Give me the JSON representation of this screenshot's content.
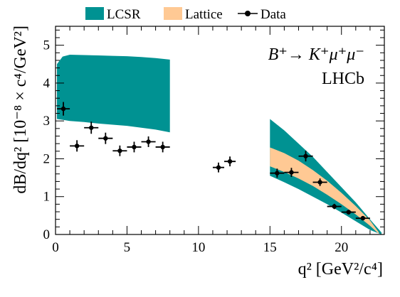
{
  "chart_data": {
    "type": "scatter",
    "title": "",
    "xlabel": "q² [GeV²/c⁴]",
    "ylabel": "dB/dq² [10⁻⁸ × c⁴/GeV²]",
    "xlim": [
      0,
      23
    ],
    "ylim": [
      0,
      5.5
    ],
    "xticks": [
      "0",
      "5",
      "10",
      "15",
      "20"
    ],
    "yticks": [
      "0",
      "1",
      "2",
      "3",
      "4",
      "5"
    ],
    "legend_placement": "top",
    "annotations": [
      "B⁺→ K⁺μ⁺μ⁻",
      "LHCb"
    ],
    "grid": false,
    "series": [
      {
        "name": "LCSR",
        "kind": "band",
        "color": "#009292",
        "segments": [
          {
            "x": [
              0.1,
              0.5,
              1,
              2,
              3,
              4,
              5,
              6,
              7,
              8
            ],
            "lower": [
              3.05,
              3.03,
              3.0,
              2.97,
              2.93,
              2.9,
              2.87,
              2.82,
              2.77,
              2.7
            ],
            "upper": [
              4.5,
              4.7,
              4.75,
              4.74,
              4.73,
              4.72,
              4.71,
              4.69,
              4.66,
              4.62
            ]
          },
          {
            "x": [
              15,
              16,
              17,
              18,
              19,
              20,
              21,
              22,
              22.8
            ],
            "lower": [
              1.55,
              1.38,
              1.2,
              1.0,
              0.8,
              0.58,
              0.35,
              0.12,
              0.0
            ],
            "upper": [
              3.05,
              2.75,
              2.4,
              2.05,
              1.65,
              1.25,
              0.85,
              0.4,
              0.05
            ]
          }
        ]
      },
      {
        "name": "Lattice",
        "kind": "band",
        "color": "#ffc994",
        "segments": [
          {
            "x": [
              15,
              16,
              17,
              18,
              19,
              20,
              21,
              22,
              22.6
            ],
            "lower": [
              1.8,
              1.65,
              1.48,
              1.28,
              1.05,
              0.8,
              0.53,
              0.23,
              0.02
            ],
            "upper": [
              2.3,
              2.15,
              1.95,
              1.7,
              1.42,
              1.1,
              0.75,
              0.37,
              0.06
            ]
          }
        ]
      },
      {
        "name": "Data",
        "kind": "points",
        "color": "#000000",
        "points": [
          {
            "x": 0.55,
            "xerr": 0.45,
            "y": 3.32,
            "yerr": 0.18
          },
          {
            "x": 1.5,
            "xerr": 0.5,
            "y": 2.34,
            "yerr": 0.15
          },
          {
            "x": 2.5,
            "xerr": 0.5,
            "y": 2.82,
            "yerr": 0.16
          },
          {
            "x": 3.5,
            "xerr": 0.5,
            "y": 2.54,
            "yerr": 0.15
          },
          {
            "x": 4.5,
            "xerr": 0.5,
            "y": 2.21,
            "yerr": 0.14
          },
          {
            "x": 5.5,
            "xerr": 0.5,
            "y": 2.31,
            "yerr": 0.14
          },
          {
            "x": 6.5,
            "xerr": 0.5,
            "y": 2.45,
            "yerr": 0.14
          },
          {
            "x": 7.5,
            "xerr": 0.5,
            "y": 2.31,
            "yerr": 0.14
          },
          {
            "x": 11.4,
            "xerr": 0.4,
            "y": 1.77,
            "yerr": 0.13
          },
          {
            "x": 12.2,
            "xerr": 0.4,
            "y": 1.93,
            "yerr": 0.13
          },
          {
            "x": 15.5,
            "xerr": 0.5,
            "y": 1.62,
            "yerr": 0.12
          },
          {
            "x": 16.5,
            "xerr": 0.5,
            "y": 1.64,
            "yerr": 0.12
          },
          {
            "x": 17.5,
            "xerr": 0.5,
            "y": 2.07,
            "yerr": 0.14
          },
          {
            "x": 18.5,
            "xerr": 0.5,
            "y": 1.38,
            "yerr": 0.1
          },
          {
            "x": 19.5,
            "xerr": 0.5,
            "y": 0.74,
            "yerr": 0.07
          },
          {
            "x": 20.5,
            "xerr": 0.5,
            "y": 0.59,
            "yerr": 0.06
          },
          {
            "x": 21.5,
            "xerr": 0.5,
            "y": 0.43,
            "yerr": 0.05
          }
        ]
      }
    ]
  }
}
